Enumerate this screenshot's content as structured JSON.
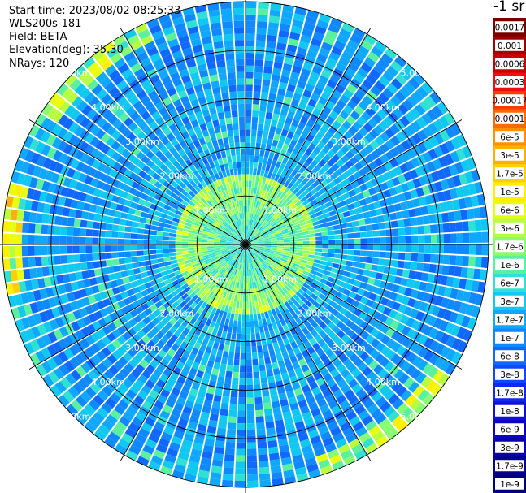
{
  "info": {
    "start_time": "Start time: 2023/08/02 08:25:33",
    "instrument": "WLS200s-181",
    "field": "Field: BETA",
    "elevation": "Elevation(deg): 35.30",
    "nrays": "NRays: 120"
  },
  "chart_data": {
    "type": "heatmap",
    "projection": "polar-ppi",
    "field": "BETA",
    "nrays": 120,
    "range_rings_km": [
      1.0,
      2.0,
      3.0,
      4.0,
      5.0
    ],
    "ring_labels": [
      "1.00km",
      "2.00km",
      "3.00km",
      "4.00km",
      "5.00km"
    ],
    "max_range_km": 5.0,
    "spokes_every_deg": 30,
    "colorbar": {
      "unit_label": "-1 sr",
      "ticks": [
        "0.0017",
        "0.001",
        "0.0006",
        "0.0003",
        "0.00017",
        "0.0001",
        "6e-5",
        "3e-5",
        "1.7e-5",
        "1e-5",
        "6e-6",
        "3e-6",
        "1.7e-6",
        "1e-6",
        "6e-7",
        "3e-7",
        "1.7e-7",
        "1e-7",
        "6e-8",
        "3e-8",
        "1.7e-8",
        "1e-8",
        "6e-9",
        "3e-9",
        "1.7e-9",
        "1e-9"
      ],
      "colors": [
        "#7a0000",
        "#a00000",
        "#c80000",
        "#ee1010",
        "#ff3a00",
        "#ff6a00",
        "#ff9000",
        "#ffb000",
        "#ffd000",
        "#fff000",
        "#e8ff10",
        "#b8ff40",
        "#88ff70",
        "#5af0a0",
        "#30e0d0",
        "#10c8f0",
        "#10a8ff",
        "#1088ff",
        "#1068ff",
        "#1048ff",
        "#1028f0",
        "#1010d8",
        "#1000c0",
        "#0800a8",
        "#040090",
        "#020078"
      ]
    }
  }
}
